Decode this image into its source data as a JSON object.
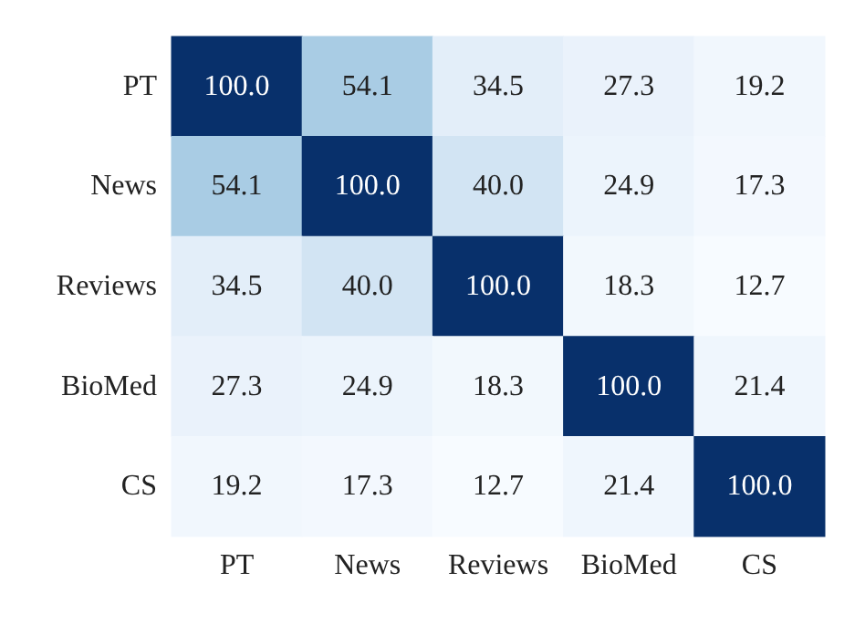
{
  "chart_data": {
    "type": "heatmap",
    "categories": [
      "PT",
      "News",
      "Reviews",
      "BioMed",
      "CS"
    ],
    "y_categories": [
      "PT",
      "News",
      "Reviews",
      "BioMed",
      "CS"
    ],
    "cells": [
      [
        100.0,
        54.1,
        34.5,
        27.3,
        19.2
      ],
      [
        54.1,
        100.0,
        40.0,
        24.9,
        17.3
      ],
      [
        34.5,
        40.0,
        100.0,
        18.3,
        12.7
      ],
      [
        27.3,
        24.9,
        18.3,
        100.0,
        21.4
      ],
      [
        19.2,
        17.3,
        12.7,
        21.4,
        100.0
      ]
    ],
    "cell_labels": [
      [
        "100.0",
        "54.1",
        "34.5",
        "27.3",
        "19.2"
      ],
      [
        "54.1",
        "100.0",
        "40.0",
        "24.9",
        "17.3"
      ],
      [
        "34.5",
        "40.0",
        "100.0",
        "18.3",
        "12.7"
      ],
      [
        "27.3",
        "24.9",
        "18.3",
        "100.0",
        "21.4"
      ],
      [
        "19.2",
        "17.3",
        "12.7",
        "21.4",
        "100.0"
      ]
    ]
  }
}
